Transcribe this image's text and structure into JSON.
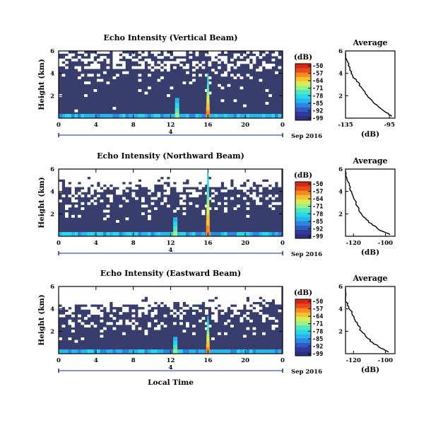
{
  "colors": {
    "background_field": "#373e6d",
    "colorbar": [
      "#2e2f82",
      "#303a9a",
      "#2f5bbf",
      "#2d85e0",
      "#29b4f0",
      "#27d8e8",
      "#4fe6c0",
      "#9cf08a",
      "#d8ec55",
      "#f6c02e",
      "#f48a20",
      "#e74a1b",
      "#d42718"
    ],
    "text": "#000000",
    "timeline": "#1a2a9a"
  },
  "chart_data": [
    {
      "type": "heatmap",
      "title": "Echo Intensity (Vertical Beam)",
      "ylabel": "Height (km)",
      "x_ticks": [
        "0",
        "4",
        "8",
        "12",
        "16",
        "20",
        "0"
      ],
      "y_ticks": [
        "2",
        "4",
        "6"
      ],
      "xlim": [
        0,
        24
      ],
      "ylim": [
        0,
        6
      ],
      "colorbar": {
        "label": "(dB)",
        "ticks": [
          "-50",
          "-57",
          "-64",
          "-71",
          "-78",
          "-85",
          "-92",
          "-99"
        ],
        "range": [
          -99,
          -50
        ]
      },
      "date_label": "Sep 2016",
      "timeline_marker": "4",
      "features": {
        "spike_hour": 16,
        "spike_top_km": 4.0,
        "secondary_hour": 12.7,
        "secondary_top_km": 1.8,
        "blank_fraction": 0.09
      },
      "profile": {
        "title": "Average",
        "xlabel": "(dB)",
        "x_ticks": [
          "-135",
          "-95"
        ],
        "xlim": [
          -135,
          -90
        ],
        "y_ticks": [
          "2",
          "4",
          "6"
        ],
        "ylim": [
          0,
          6
        ],
        "x": [
          -136,
          -133,
          -131,
          -129,
          -125,
          -121,
          -117,
          -111,
          -105,
          -98,
          -93
        ],
        "y": [
          5.8,
          5.0,
          4.4,
          3.9,
          3.3,
          2.8,
          2.2,
          1.6,
          1.0,
          0.5,
          0.15
        ]
      }
    },
    {
      "type": "heatmap",
      "title": "Echo Intensity (Northward Beam)",
      "ylabel": "Height (km)",
      "x_ticks": [
        "0",
        "4",
        "8",
        "12",
        "16",
        "20",
        "0"
      ],
      "y_ticks": [
        "2",
        "4",
        "6"
      ],
      "xlim": [
        0,
        24
      ],
      "ylim": [
        0,
        6
      ],
      "colorbar": {
        "label": "(dB)",
        "ticks": [
          "-50",
          "-57",
          "-64",
          "-71",
          "-78",
          "-85",
          "-92",
          "-99"
        ],
        "range": [
          -99,
          -50
        ]
      },
      "date_label": "Sep 2016",
      "timeline_marker": "4",
      "features": {
        "spike_hour": 16,
        "spike_top_km": 5.7,
        "secondary_hour": 12.5,
        "secondary_top_km": 1.7,
        "blank_fraction": 0.2
      },
      "profile": {
        "title": "Average",
        "xlabel": "(dB)",
        "x_ticks": [
          "-120",
          "-100"
        ],
        "xlim": [
          -125,
          -94
        ],
        "y_ticks": [
          "2",
          "4",
          "6"
        ],
        "ylim": [
          0,
          6
        ],
        "x": [
          -126,
          -124,
          -122,
          -121,
          -119,
          -117,
          -115,
          -112,
          -108,
          -103,
          -97
        ],
        "y": [
          5.8,
          5.0,
          4.4,
          3.8,
          3.2,
          2.6,
          2.0,
          1.5,
          1.0,
          0.5,
          0.15
        ]
      }
    },
    {
      "type": "heatmap",
      "title": "Echo Intensity (Eastward Beam)",
      "ylabel": "Height (km)",
      "xlabel": "Local Time",
      "x_ticks": [
        "0",
        "4",
        "8",
        "12",
        "16",
        "20",
        "0"
      ],
      "y_ticks": [
        "2",
        "4",
        "6"
      ],
      "xlim": [
        0,
        24
      ],
      "ylim": [
        0,
        6
      ],
      "colorbar": {
        "label": "(dB)",
        "ticks": [
          "-50",
          "-57",
          "-64",
          "-71",
          "-78",
          "-85",
          "-92",
          "-99"
        ],
        "range": [
          -99,
          -50
        ]
      },
      "date_label": "Sep 2016",
      "timeline_marker": "4",
      "features": {
        "spike_hour": 16,
        "spike_top_km": 3.4,
        "secondary_hour": 12.5,
        "secondary_top_km": 1.5,
        "blank_fraction": 0.22
      },
      "profile": {
        "title": "Average",
        "xlabel": "(dB)",
        "x_ticks": [
          "-120",
          "-100"
        ],
        "xlim": [
          -125,
          -94
        ],
        "y_ticks": [
          "2",
          "4",
          "6"
        ],
        "ylim": [
          0,
          6
        ],
        "x": [
          -126,
          -125,
          -123,
          -121,
          -119,
          -117,
          -115,
          -112,
          -108,
          -103,
          -98
        ],
        "y": [
          5.8,
          4.8,
          4.2,
          3.6,
          3.0,
          2.5,
          2.0,
          1.5,
          1.0,
          0.5,
          0.15
        ]
      }
    }
  ]
}
